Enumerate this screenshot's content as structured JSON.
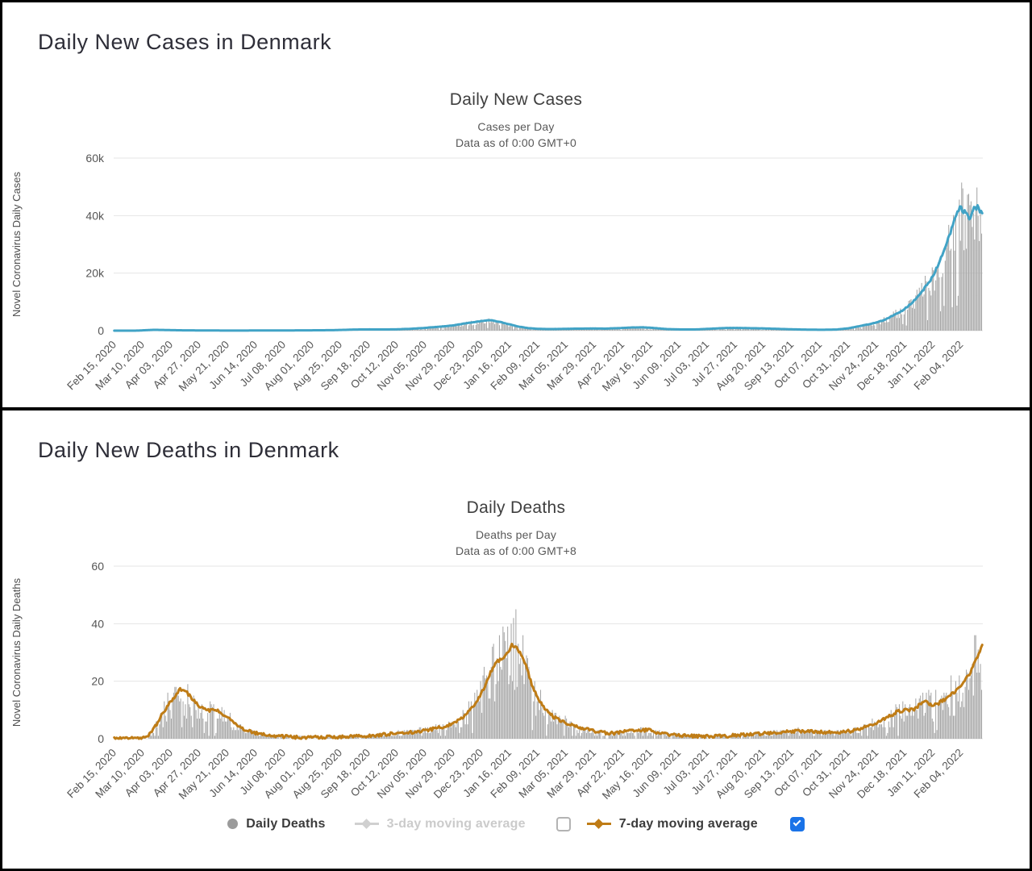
{
  "headings": {
    "cases": "Daily New Cases in Denmark",
    "deaths": "Daily New Deaths in Denmark"
  },
  "colors": {
    "bars": "#a7a7a7",
    "cases_line": "#41a3c6",
    "deaths_line": "#bf7c16",
    "gridline": "#e4e4e4",
    "axis_text": "#555555",
    "checkbox_checked": "#1a73e8",
    "legend_disabled_text": "#cbcbcb"
  },
  "legend": {
    "items": [
      {
        "label": "Daily Deaths",
        "marker": "circle",
        "marker_color": "#9b9b9b",
        "enabled": true
      },
      {
        "label": "3-day moving average",
        "marker": "line-diamond",
        "marker_color": "#d0d0d0",
        "enabled": false
      },
      {
        "label": "7-day moving average",
        "marker": "line-diamond",
        "marker_color": "#bf7c16",
        "enabled": true
      }
    ],
    "checkboxes": [
      {
        "name": "3-day checkbox",
        "checked": false
      },
      {
        "name": "7-day checkbox",
        "checked": true,
        "color": "#1a73e8"
      }
    ]
  },
  "chart_data": [
    {
      "type": "bar+line",
      "title": "Daily New Cases",
      "subtitle": [
        "Cases per Day",
        "Data as of 0:00 GMT+0"
      ],
      "ylabel": "Novel Coronavirus Daily Cases",
      "ylim": [
        0,
        60000
      ],
      "yticks": [
        {
          "v": 0,
          "label": "0"
        },
        {
          "v": 20000,
          "label": "20k"
        },
        {
          "v": 40000,
          "label": "40k"
        },
        {
          "v": 60000,
          "label": "60k"
        }
      ],
      "x_tick_interval_days": 24,
      "total_days": 739,
      "x_tick_labels": [
        "Feb 15, 2020",
        "Mar 10, 2020",
        "Apr 03, 2020",
        "Apr 27, 2020",
        "May 21, 2020",
        "Jun 14, 2020",
        "Jul 08, 2020",
        "Aug 01, 2020",
        "Aug 25, 2020",
        "Sep 18, 2020",
        "Oct 12, 2020",
        "Nov 05, 2020",
        "Nov 29, 2020",
        "Dec 23, 2020",
        "Jan 16, 2021",
        "Feb 09, 2021",
        "Mar 05, 2021",
        "Mar 29, 2021",
        "Apr 22, 2021",
        "May 16, 2021",
        "Jun 09, 2021",
        "Jul 03, 2021",
        "Jul 27, 2021",
        "Aug 20, 2021",
        "Sep 13, 2021",
        "Oct 07, 2021",
        "Oct 31, 2021",
        "Nov 24, 2021",
        "Dec 18, 2021",
        "Jan 11, 2022",
        "Feb 04, 2022"
      ],
      "seed": 7,
      "bar_series": {
        "name": "Daily New Cases",
        "color": "#a7a7a7",
        "noise": [
          0.6,
          1.25
        ],
        "dip_chance": 0.12,
        "dip_factor": 0.3,
        "round": false
      },
      "line_series": {
        "name": "7-day moving average",
        "color": "#41a3c6",
        "width": 3,
        "jitter_rel": 0.05,
        "jitter_abs": 0,
        "points": [
          [
            0,
            0
          ],
          [
            20,
            20
          ],
          [
            26,
            150
          ],
          [
            34,
            280
          ],
          [
            44,
            220
          ],
          [
            58,
            120
          ],
          [
            76,
            60
          ],
          [
            100,
            45
          ],
          [
            124,
            55
          ],
          [
            148,
            80
          ],
          [
            168,
            120
          ],
          [
            186,
            180
          ],
          [
            204,
            380
          ],
          [
            216,
            440
          ],
          [
            228,
            400
          ],
          [
            240,
            470
          ],
          [
            252,
            650
          ],
          [
            264,
            950
          ],
          [
            276,
            1350
          ],
          [
            288,
            1800
          ],
          [
            298,
            2500
          ],
          [
            308,
            3100
          ],
          [
            315,
            3500
          ],
          [
            320,
            3600
          ],
          [
            326,
            3200
          ],
          [
            332,
            2600
          ],
          [
            338,
            2000
          ],
          [
            344,
            1400
          ],
          [
            352,
            900
          ],
          [
            360,
            650
          ],
          [
            370,
            550
          ],
          [
            382,
            620
          ],
          [
            394,
            700
          ],
          [
            406,
            760
          ],
          [
            418,
            720
          ],
          [
            430,
            900
          ],
          [
            440,
            1100
          ],
          [
            450,
            1150
          ],
          [
            460,
            900
          ],
          [
            470,
            550
          ],
          [
            482,
            420
          ],
          [
            494,
            420
          ],
          [
            506,
            650
          ],
          [
            518,
            900
          ],
          [
            530,
            950
          ],
          [
            542,
            850
          ],
          [
            554,
            750
          ],
          [
            566,
            600
          ],
          [
            578,
            450
          ],
          [
            590,
            350
          ],
          [
            602,
            320
          ],
          [
            614,
            400
          ],
          [
            624,
            800
          ],
          [
            634,
            1600
          ],
          [
            644,
            2400
          ],
          [
            654,
            3600
          ],
          [
            662,
            5200
          ],
          [
            670,
            7000
          ],
          [
            678,
            9500
          ],
          [
            686,
            13000
          ],
          [
            693,
            17000
          ],
          [
            699,
            21500
          ],
          [
            705,
            27000
          ],
          [
            710,
            33000
          ],
          [
            715,
            38500
          ],
          [
            719,
            42800
          ],
          [
            723,
            41000
          ],
          [
            727,
            39400
          ],
          [
            731,
            42200
          ],
          [
            734,
            43400
          ],
          [
            738,
            40700
          ]
        ]
      }
    },
    {
      "type": "bar+line",
      "title": "Daily Deaths",
      "subtitle": [
        "Deaths per Day",
        "Data as of 0:00 GMT+8"
      ],
      "ylabel": "Novel Coronavirus Daily Deaths",
      "ylim": [
        0,
        60
      ],
      "yticks": [
        {
          "v": 0,
          "label": "0"
        },
        {
          "v": 20,
          "label": "20"
        },
        {
          "v": 40,
          "label": "40"
        },
        {
          "v": 60,
          "label": "60"
        }
      ],
      "x_tick_interval_days": 24,
      "total_days": 739,
      "x_tick_labels": [
        "Feb 15, 2020",
        "Mar 10, 2020",
        "Apr 03, 2020",
        "Apr 27, 2020",
        "May 21, 2020",
        "Jun 14, 2020",
        "Jul 08, 2020",
        "Aug 01, 2020",
        "Aug 25, 2020",
        "Sep 18, 2020",
        "Oct 12, 2020",
        "Nov 05, 2020",
        "Nov 29, 2020",
        "Dec 23, 2020",
        "Jan 16, 2021",
        "Feb 09, 2021",
        "Mar 05, 2021",
        "Mar 29, 2021",
        "Apr 22, 2021",
        "May 16, 2021",
        "Jun 09, 2021",
        "Jul 03, 2021",
        "Jul 27, 2021",
        "Aug 20, 2021",
        "Sep 13, 2021",
        "Oct 07, 2021",
        "Oct 31, 2021",
        "Nov 24, 2021",
        "Dec 18, 2021",
        "Jan 11, 2022",
        "Feb 04, 2022"
      ],
      "seed": 13,
      "bar_series": {
        "name": "Daily Deaths",
        "color": "#a7a7a7",
        "noise": [
          0.45,
          1.4
        ],
        "dip_chance": 0.08,
        "dip_factor": 0.2,
        "round": true
      },
      "line_series": {
        "name": "7-day moving average",
        "color": "#bf7c16",
        "width": 3,
        "jitter_rel": 0,
        "jitter_abs": 1.1,
        "points": [
          [
            0,
            0
          ],
          [
            24,
            0.2
          ],
          [
            30,
            1.5
          ],
          [
            36,
            5
          ],
          [
            43,
            10
          ],
          [
            50,
            14
          ],
          [
            56,
            17.3
          ],
          [
            61,
            16.5
          ],
          [
            66,
            14
          ],
          [
            72,
            11.5
          ],
          [
            80,
            10
          ],
          [
            88,
            9.6
          ],
          [
            95,
            8
          ],
          [
            102,
            5.5
          ],
          [
            110,
            3.5
          ],
          [
            120,
            2
          ],
          [
            130,
            1.2
          ],
          [
            142,
            0.8
          ],
          [
            158,
            0.5
          ],
          [
            172,
            0.5
          ],
          [
            186,
            0.6
          ],
          [
            200,
            0.8
          ],
          [
            214,
            1
          ],
          [
            228,
            1.4
          ],
          [
            242,
            2
          ],
          [
            255,
            2.4
          ],
          [
            266,
            3
          ],
          [
            276,
            3.8
          ],
          [
            286,
            5
          ],
          [
            294,
            6.8
          ],
          [
            302,
            9.5
          ],
          [
            309,
            13.5
          ],
          [
            315,
            18
          ],
          [
            320,
            23
          ],
          [
            325,
            26.5
          ],
          [
            330,
            28
          ],
          [
            334,
            29.5
          ],
          [
            338,
            32.5
          ],
          [
            342,
            32
          ],
          [
            346,
            29
          ],
          [
            350,
            25.5
          ],
          [
            355,
            19
          ],
          [
            360,
            14
          ],
          [
            366,
            10.5
          ],
          [
            374,
            7.5
          ],
          [
            384,
            5.5
          ],
          [
            394,
            4
          ],
          [
            404,
            3
          ],
          [
            414,
            2.2
          ],
          [
            424,
            1.9
          ],
          [
            434,
            2.5
          ],
          [
            444,
            3
          ],
          [
            454,
            3
          ],
          [
            464,
            2
          ],
          [
            474,
            1.3
          ],
          [
            486,
            1
          ],
          [
            498,
            0.8
          ],
          [
            510,
            0.8
          ],
          [
            522,
            1
          ],
          [
            534,
            1.3
          ],
          [
            546,
            1.6
          ],
          [
            558,
            2
          ],
          [
            570,
            2.4
          ],
          [
            580,
            2.6
          ],
          [
            592,
            2.5
          ],
          [
            604,
            2.3
          ],
          [
            616,
            2.2
          ],
          [
            628,
            2.8
          ],
          [
            638,
            4
          ],
          [
            648,
            5.5
          ],
          [
            658,
            7.5
          ],
          [
            666,
            9.5
          ],
          [
            674,
            10
          ],
          [
            680,
            10
          ],
          [
            686,
            12.5
          ],
          [
            690,
            13
          ],
          [
            694,
            11.8
          ],
          [
            700,
            12.2
          ],
          [
            706,
            13.5
          ],
          [
            712,
            15.5
          ],
          [
            718,
            17.5
          ],
          [
            724,
            20.5
          ],
          [
            729,
            24
          ],
          [
            733,
            27.5
          ],
          [
            736,
            30
          ],
          [
            738,
            33
          ]
        ]
      }
    }
  ]
}
